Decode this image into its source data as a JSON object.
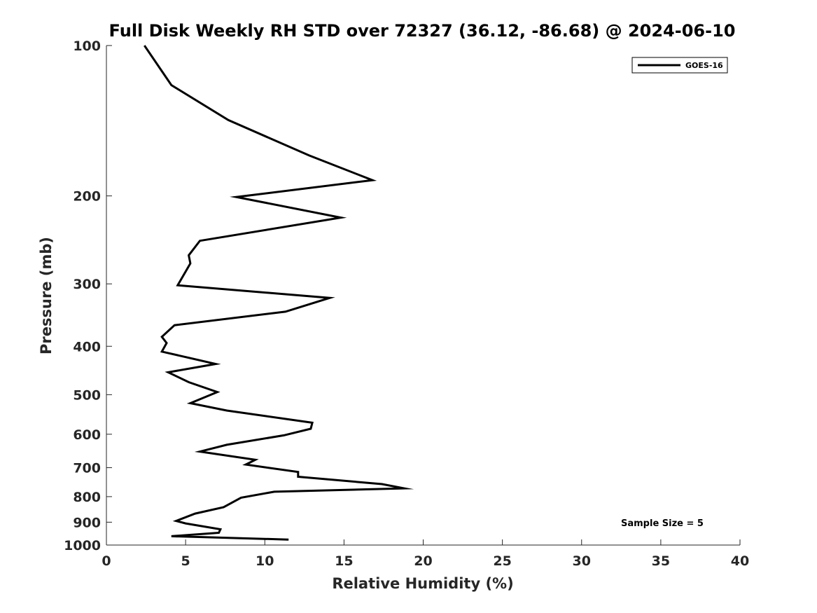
{
  "chart_data": {
    "type": "line",
    "title": "Full Disk Weekly RH STD over 72327 (36.12, -86.68) @ 2024-06-10",
    "xlabel": "Relative Humidity (%)",
    "ylabel": "Pressure (mb)",
    "xlim": [
      0,
      40
    ],
    "ylim": [
      100,
      1000
    ],
    "y_scale": "log",
    "y_reversed": true,
    "x_ticks": [
      0,
      5,
      10,
      15,
      20,
      25,
      30,
      35,
      40
    ],
    "y_ticks": [
      100,
      200,
      300,
      400,
      500,
      600,
      700,
      800,
      900,
      1000
    ],
    "grid": false,
    "legend": {
      "position": "top-right",
      "entries": [
        "GOES-16"
      ]
    },
    "annotation": "Sample Size = 5",
    "series": [
      {
        "name": "GOES-16",
        "color": "#000000",
        "x": [
          2.4,
          4.1,
          7.7,
          12.8,
          16.8,
          8.2,
          14.8,
          5.9,
          5.2,
          5.3,
          4.5,
          14.1,
          11.3,
          4.3,
          3.5,
          3.8,
          3.5,
          6.9,
          3.9,
          5.2,
          7.0,
          5.3,
          7.6,
          13.0,
          12.9,
          11.2,
          7.6,
          5.9,
          9.4,
          8.8,
          12.1,
          12.1,
          17.4,
          18.8,
          10.6,
          8.5,
          7.4,
          5.6,
          4.4,
          5.0,
          7.2,
          7.1,
          4.1,
          11.5
        ],
        "y": [
          100,
          120,
          141,
          166,
          186,
          201,
          221,
          246,
          263,
          273,
          302,
          320,
          341,
          363,
          383,
          394,
          410,
          434,
          451,
          472,
          494,
          520,
          538,
          569,
          585,
          603,
          630,
          650,
          675,
          690,
          714,
          730,
          755,
          770,
          782,
          804,
          840,
          865,
          895,
          905,
          930,
          945,
          960,
          975
        ]
      }
    ]
  }
}
